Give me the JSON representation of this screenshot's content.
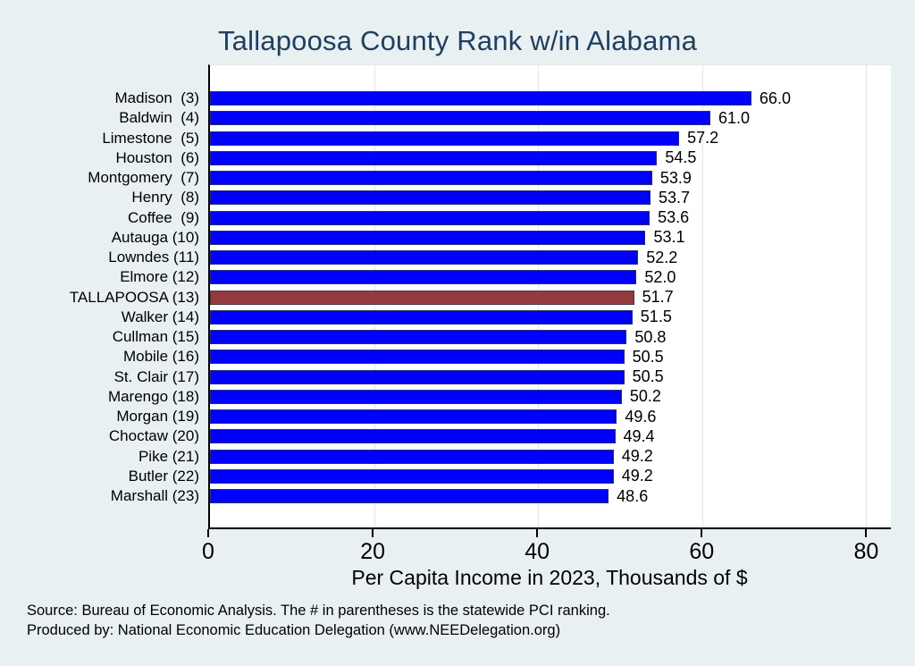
{
  "chart_data": {
    "type": "bar",
    "orientation": "horizontal",
    "title": "Tallapoosa County Rank w/in Alabama",
    "categories": [
      "Madison  (3)",
      "Baldwin  (4)",
      "Limestone  (5)",
      "Houston  (6)",
      "Montgomery  (7)",
      "Henry  (8)",
      "Coffee  (9)",
      "Autauga (10)",
      "Lowndes (11)",
      "Elmore (12)",
      "TALLAPOOSA (13)",
      "Walker (14)",
      "Cullman (15)",
      "Mobile (16)",
      "St. Clair (17)",
      "Marengo (18)",
      "Morgan (19)",
      "Choctaw (20)",
      "Pike (21)",
      "Butler (22)",
      "Marshall (23)"
    ],
    "values": [
      66.0,
      61.0,
      57.2,
      54.5,
      53.9,
      53.7,
      53.6,
      53.1,
      52.2,
      52.0,
      51.7,
      51.5,
      50.8,
      50.5,
      50.5,
      50.2,
      49.6,
      49.4,
      49.2,
      49.2,
      48.6
    ],
    "value_label_format": "one_decimal",
    "highlight_index": 10,
    "xlabel": "Per Capita Income in 2023, Thousands of $",
    "xticks": [
      0,
      20,
      40,
      60,
      80
    ],
    "xlim": [
      0,
      83
    ],
    "grid": "vertical",
    "legend_position": "none",
    "colors": {
      "bar": "#0000ff",
      "highlight": "#943a3c",
      "grid": "#dde8eb",
      "axis": "#000000",
      "title": "#1f3f60",
      "background": "#e9f0f2",
      "plot_background": "#ffffff"
    }
  },
  "notes": {
    "source": "Source: Bureau of Economic Analysis. The # in parentheses is the statewide PCI ranking.",
    "produced_by": "Produced by: National Economic Education Delegation (www.NEEDelegation.org)"
  }
}
